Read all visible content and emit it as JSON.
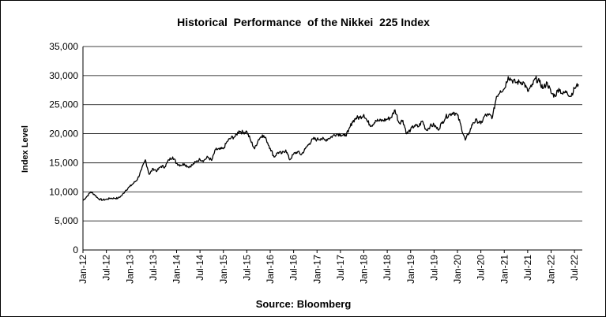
{
  "chart_data": {
    "type": "line",
    "title": "Historical  Performance  of the Nikkei  225 Index",
    "ylabel": "Index Level",
    "xlabel": "Source: Bloomberg",
    "ylim": [
      0,
      35000
    ],
    "yticks": [
      "0",
      "5,000",
      "10,000",
      "15,000",
      "20,000",
      "25,000",
      "30,000",
      "35,000"
    ],
    "y_grid": true,
    "x_ticks": [
      "Jan-12",
      "Jul-12",
      "Jan-13",
      "Jul-13",
      "Jan-14",
      "Jul-14",
      "Jan-15",
      "Jul-15",
      "Jan-16",
      "Jul-16",
      "Jan-17",
      "Jul-17",
      "Jan-18",
      "Jul-18",
      "Jan-19",
      "Jul-19",
      "Jan-20",
      "Jul-20",
      "Jan-21",
      "Jul-21",
      "Jan-22",
      "Jul-22"
    ],
    "series": [
      {
        "color": "#000000",
        "x": [
          "2012-01",
          "2012-02",
          "2012-03",
          "2012-04",
          "2012-05",
          "2012-06",
          "2012-07",
          "2012-08",
          "2012-09",
          "2012-10",
          "2012-11",
          "2012-12",
          "2013-01",
          "2013-02",
          "2013-03",
          "2013-04",
          "2013-05",
          "2013-06",
          "2013-07",
          "2013-08",
          "2013-09",
          "2013-10",
          "2013-11",
          "2013-12",
          "2014-01",
          "2014-02",
          "2014-03",
          "2014-04",
          "2014-05",
          "2014-06",
          "2014-07",
          "2014-08",
          "2014-09",
          "2014-10",
          "2014-11",
          "2014-12",
          "2015-01",
          "2015-02",
          "2015-03",
          "2015-04",
          "2015-05",
          "2015-06",
          "2015-07",
          "2015-08",
          "2015-09",
          "2015-10",
          "2015-11",
          "2015-12",
          "2016-01",
          "2016-02",
          "2016-03",
          "2016-04",
          "2016-05",
          "2016-06",
          "2016-07",
          "2016-08",
          "2016-09",
          "2016-10",
          "2016-11",
          "2016-12",
          "2017-01",
          "2017-02",
          "2017-03",
          "2017-04",
          "2017-05",
          "2017-06",
          "2017-07",
          "2017-08",
          "2017-09",
          "2017-10",
          "2017-11",
          "2017-12",
          "2018-01",
          "2018-02",
          "2018-03",
          "2018-04",
          "2018-05",
          "2018-06",
          "2018-07",
          "2018-08",
          "2018-09",
          "2018-10",
          "2018-11",
          "2018-12",
          "2019-01",
          "2019-02",
          "2019-03",
          "2019-04",
          "2019-05",
          "2019-06",
          "2019-07",
          "2019-08",
          "2019-09",
          "2019-10",
          "2019-11",
          "2019-12",
          "2020-01",
          "2020-02",
          "2020-03",
          "2020-04",
          "2020-05",
          "2020-06",
          "2020-07",
          "2020-08",
          "2020-09",
          "2020-10",
          "2020-11",
          "2020-12",
          "2021-01",
          "2021-02",
          "2021-03",
          "2021-04",
          "2021-05",
          "2021-06",
          "2021-07",
          "2021-08",
          "2021-09",
          "2021-10",
          "2021-11",
          "2021-12",
          "2022-01",
          "2022-02",
          "2022-03",
          "2022-04",
          "2022-05",
          "2022-06",
          "2022-07",
          "2022-08"
        ],
        "values": [
          8500,
          9200,
          10000,
          9500,
          8800,
          8600,
          8700,
          8900,
          8900,
          8900,
          9400,
          10300,
          10900,
          11500,
          12200,
          13800,
          15500,
          13000,
          14000,
          13600,
          14400,
          14300,
          15500,
          16000,
          14900,
          14600,
          14800,
          14300,
          14600,
          15200,
          15600,
          15400,
          16000,
          15400,
          17300,
          17300,
          17400,
          18700,
          19300,
          19500,
          20500,
          20200,
          20400,
          18800,
          17400,
          19000,
          19800,
          19000,
          17500,
          16000,
          16800,
          16600,
          17200,
          15500,
          16500,
          16900,
          16400,
          17400,
          18300,
          19100,
          19000,
          19200,
          18900,
          19200,
          19600,
          20000,
          19900,
          19600,
          20300,
          22000,
          22700,
          22800,
          23300,
          22000,
          21400,
          22300,
          22200,
          22300,
          22500,
          22800,
          24100,
          21900,
          22300,
          20000,
          20700,
          21400,
          21200,
          22200,
          20600,
          21300,
          21500,
          20700,
          21800,
          22900,
          23300,
          23700,
          23200,
          21100,
          18900,
          20200,
          21900,
          22300,
          21700,
          23100,
          23200,
          22900,
          26400,
          27400,
          27700,
          29800,
          29200,
          28800,
          28900,
          28800,
          27300,
          28100,
          29500,
          28900,
          27800,
          28800,
          27000,
          26500,
          27800,
          26800,
          27300,
          26400,
          27800,
          28500
        ]
      }
    ]
  }
}
